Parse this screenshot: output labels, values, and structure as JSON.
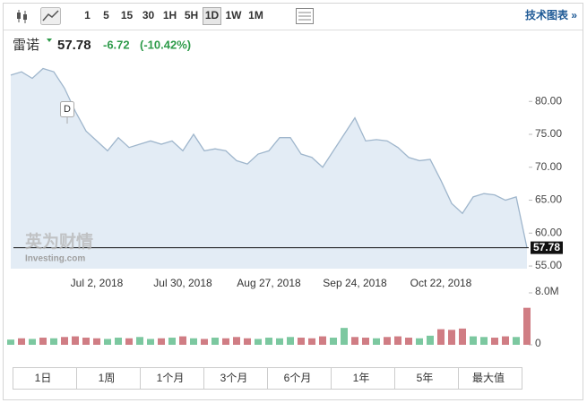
{
  "toolbar": {
    "intervals": [
      "1",
      "5",
      "15",
      "30",
      "1H",
      "5H",
      "1D",
      "1W",
      "1M"
    ],
    "selected": "1D",
    "link": "技术图表 »"
  },
  "header": {
    "name": "雷诺",
    "price": "57.78",
    "change": "-6.72",
    "change_pct": "(-10.42%)"
  },
  "watermark": {
    "brand": "英为财情",
    "site": "Investing.com"
  },
  "chart_data": [
    {
      "type": "area",
      "color": "#9fb6cc",
      "fill": "#e3ecf5",
      "categories": [
        null,
        null,
        null,
        null,
        null,
        null,
        null,
        null,
        "Jul 2, 2018",
        null,
        null,
        null,
        null,
        null,
        null,
        null,
        "Jul 30, 2018",
        null,
        null,
        null,
        null,
        null,
        null,
        null,
        "Aug 27, 2018",
        null,
        null,
        null,
        null,
        null,
        null,
        null,
        "Sep 24, 2018",
        null,
        null,
        null,
        null,
        null,
        null,
        null,
        "Oct 22, 2018",
        null,
        null,
        null,
        null,
        null,
        null,
        null,
        null
      ],
      "values": [
        84,
        84.5,
        83.5,
        85,
        84.5,
        82,
        78.5,
        75.5,
        74,
        72.5,
        74.5,
        73,
        73.5,
        74,
        73.5,
        74,
        72.5,
        75,
        72.5,
        72.8,
        72.5,
        71,
        70.5,
        72,
        72.5,
        74.5,
        74.5,
        72,
        71.5,
        70,
        72.5,
        75,
        77.5,
        74,
        74.2,
        74,
        73,
        71.5,
        71,
        71.2,
        68,
        64.5,
        63,
        65.5,
        66,
        65.8,
        65,
        65.5,
        57.78
      ],
      "marker": "D",
      "last_price": {
        "value": 57.78,
        "label": "57.78"
      },
      "ylim": [
        54.6,
        85.2
      ],
      "yticks": [
        {
          "value": 55,
          "label": "55.00"
        },
        {
          "value": 60,
          "label": "60.00"
        },
        {
          "value": 65,
          "label": "65.00"
        },
        {
          "value": 70,
          "label": "70.00"
        },
        {
          "value": 75,
          "label": "75.00"
        },
        {
          "value": 80,
          "label": "80.00"
        }
      ]
    },
    {
      "type": "bar",
      "values": [
        800000,
        1000000,
        900000,
        1100000,
        1000000,
        1200000,
        1300000,
        1100000,
        1000000,
        900000,
        1100000,
        1000000,
        1200000,
        900000,
        1000000,
        1100000,
        1300000,
        1000000,
        900000,
        1100000,
        1000000,
        1200000,
        1000000,
        900000,
        1100000,
        1000000,
        1200000,
        1100000,
        1000000,
        1300000,
        1100000,
        2600000,
        1200000,
        1100000,
        1000000,
        1200000,
        1300000,
        1100000,
        1000000,
        1400000,
        2400000,
        2300000,
        2500000,
        1300000,
        1200000,
        1100000,
        1300000,
        1200000,
        5700000
      ],
      "colors": [
        "#7cc8a0",
        "#d07d84",
        "#7cc8a0",
        "#d07d84",
        "#7cc8a0",
        "#d07d84",
        "#d07d84",
        "#d07d84",
        "#d07d84",
        "#7cc8a0",
        "#7cc8a0",
        "#d07d84",
        "#7cc8a0",
        "#7cc8a0",
        "#d07d84",
        "#7cc8a0",
        "#d07d84",
        "#7cc8a0",
        "#d07d84",
        "#7cc8a0",
        "#d07d84",
        "#d07d84",
        "#d07d84",
        "#7cc8a0",
        "#7cc8a0",
        "#7cc8a0",
        "#7cc8a0",
        "#d07d84",
        "#d07d84",
        "#d07d84",
        "#7cc8a0",
        "#7cc8a0",
        "#d07d84",
        "#d07d84",
        "#7cc8a0",
        "#d07d84",
        "#d07d84",
        "#d07d84",
        "#7cc8a0",
        "#7cc8a0",
        "#d07d84",
        "#d07d84",
        "#d07d84",
        "#7cc8a0",
        "#7cc8a0",
        "#d07d84",
        "#d07d84",
        "#7cc8a0",
        "#d07d84"
      ],
      "ylim": [
        0,
        8000000
      ],
      "yticks": [
        0,
        {
          "value": 8000000,
          "label": "8.0M"
        }
      ]
    }
  ],
  "ranges": [
    "1日",
    "1周",
    "1个月",
    "3个月",
    "6个月",
    "1年",
    "5年",
    "最大值"
  ]
}
